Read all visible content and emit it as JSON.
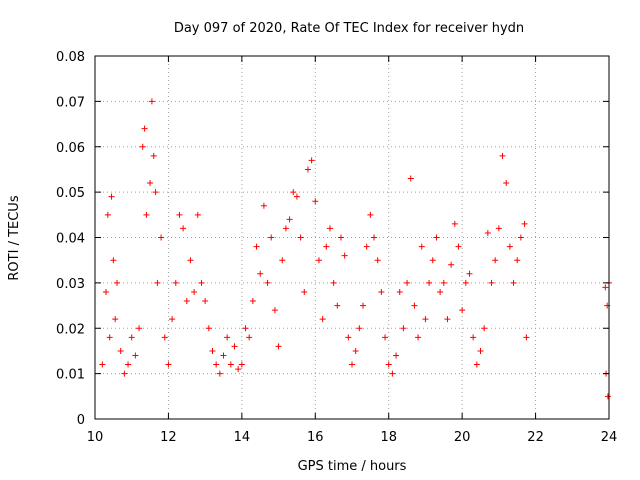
{
  "chart_data": {
    "type": "scatter",
    "title": "Day 097 of 2020, Rate Of TEC Index for receiver hydn",
    "xlabel": "GPS time / hours",
    "ylabel": "ROTI / TECUs",
    "xlim": [
      10,
      24
    ],
    "ylim": [
      0,
      0.08
    ],
    "x_ticks": [
      10,
      12,
      14,
      16,
      18,
      20,
      22,
      24
    ],
    "x_tick_labels": [
      "10",
      "12",
      "14",
      "16",
      "18",
      "20",
      "22",
      "24"
    ],
    "y_ticks": [
      0,
      0.01,
      0.02,
      0.03,
      0.04,
      0.05,
      0.06,
      0.07,
      0.08
    ],
    "y_tick_labels": [
      "0",
      "0.01",
      "0.02",
      "0.03",
      "0.04",
      "0.05",
      "0.06",
      "0.07",
      "0.08"
    ],
    "grid": true,
    "marker": "plus",
    "color": "#ff0000",
    "series": [
      {
        "x": [
          10.2,
          10.3,
          10.35,
          10.4,
          10.45,
          10.5,
          10.55,
          10.6,
          10.7,
          10.8,
          10.9,
          11.0,
          11.1,
          11.2,
          11.3,
          11.35,
          11.4,
          11.5,
          11.55,
          11.6,
          11.65,
          11.7,
          11.8,
          11.9,
          12.0,
          12.1,
          12.2,
          12.3,
          12.4,
          12.5,
          12.6,
          12.7,
          12.8,
          12.9,
          13.0,
          13.1,
          13.2,
          13.3,
          13.4,
          13.5,
          13.6,
          13.7,
          13.8,
          13.9,
          14.0,
          14.1,
          14.2,
          14.3,
          14.4,
          14.5,
          14.6,
          14.7,
          14.8,
          14.9,
          15.0,
          15.1,
          15.2,
          15.3,
          15.4,
          15.5,
          15.6,
          15.7,
          15.8,
          15.9,
          16.0,
          16.1,
          16.2,
          16.3,
          16.4,
          16.5,
          16.6,
          16.7,
          16.8,
          16.9,
          17.0,
          17.1,
          17.2,
          17.3,
          17.4,
          17.5,
          17.6,
          17.7,
          17.8,
          17.9,
          18.0,
          18.1,
          18.2,
          18.3,
          18.4,
          18.5,
          18.6,
          18.7,
          18.8,
          18.9,
          19.0,
          19.1,
          19.2,
          19.3,
          19.4,
          19.5,
          19.6,
          19.7,
          19.8,
          19.9,
          20.0,
          20.1,
          20.2,
          20.3,
          20.4,
          20.5,
          20.6,
          20.7,
          20.8,
          20.9,
          21.0,
          21.1,
          21.2,
          21.3,
          21.4,
          21.5,
          21.6,
          21.7,
          21.75,
          23.9,
          23.95,
          24.0,
          23.92,
          23.97
        ],
        "y": [
          0.012,
          0.028,
          0.045,
          0.018,
          0.049,
          0.035,
          0.022,
          0.03,
          0.015,
          0.01,
          0.012,
          0.018,
          0.014,
          0.02,
          0.06,
          0.064,
          0.045,
          0.052,
          0.07,
          0.058,
          0.05,
          0.03,
          0.04,
          0.018,
          0.012,
          0.022,
          0.03,
          0.045,
          0.042,
          0.026,
          0.035,
          0.028,
          0.045,
          0.03,
          0.026,
          0.02,
          0.015,
          0.012,
          0.01,
          0.014,
          0.018,
          0.012,
          0.016,
          0.011,
          0.012,
          0.02,
          0.018,
          0.026,
          0.038,
          0.032,
          0.047,
          0.03,
          0.04,
          0.024,
          0.016,
          0.035,
          0.042,
          0.044,
          0.05,
          0.049,
          0.04,
          0.028,
          0.055,
          0.057,
          0.048,
          0.035,
          0.022,
          0.038,
          0.042,
          0.03,
          0.025,
          0.04,
          0.036,
          0.018,
          0.012,
          0.015,
          0.02,
          0.025,
          0.038,
          0.045,
          0.04,
          0.035,
          0.028,
          0.018,
          0.012,
          0.01,
          0.014,
          0.028,
          0.02,
          0.03,
          0.053,
          0.025,
          0.018,
          0.038,
          0.022,
          0.03,
          0.035,
          0.04,
          0.028,
          0.03,
          0.022,
          0.034,
          0.043,
          0.038,
          0.024,
          0.03,
          0.032,
          0.018,
          0.012,
          0.015,
          0.02,
          0.041,
          0.03,
          0.035,
          0.042,
          0.058,
          0.052,
          0.038,
          0.03,
          0.035,
          0.04,
          0.043,
          0.018,
          0.029,
          0.025,
          0.03,
          0.01,
          0.005
        ]
      }
    ]
  }
}
